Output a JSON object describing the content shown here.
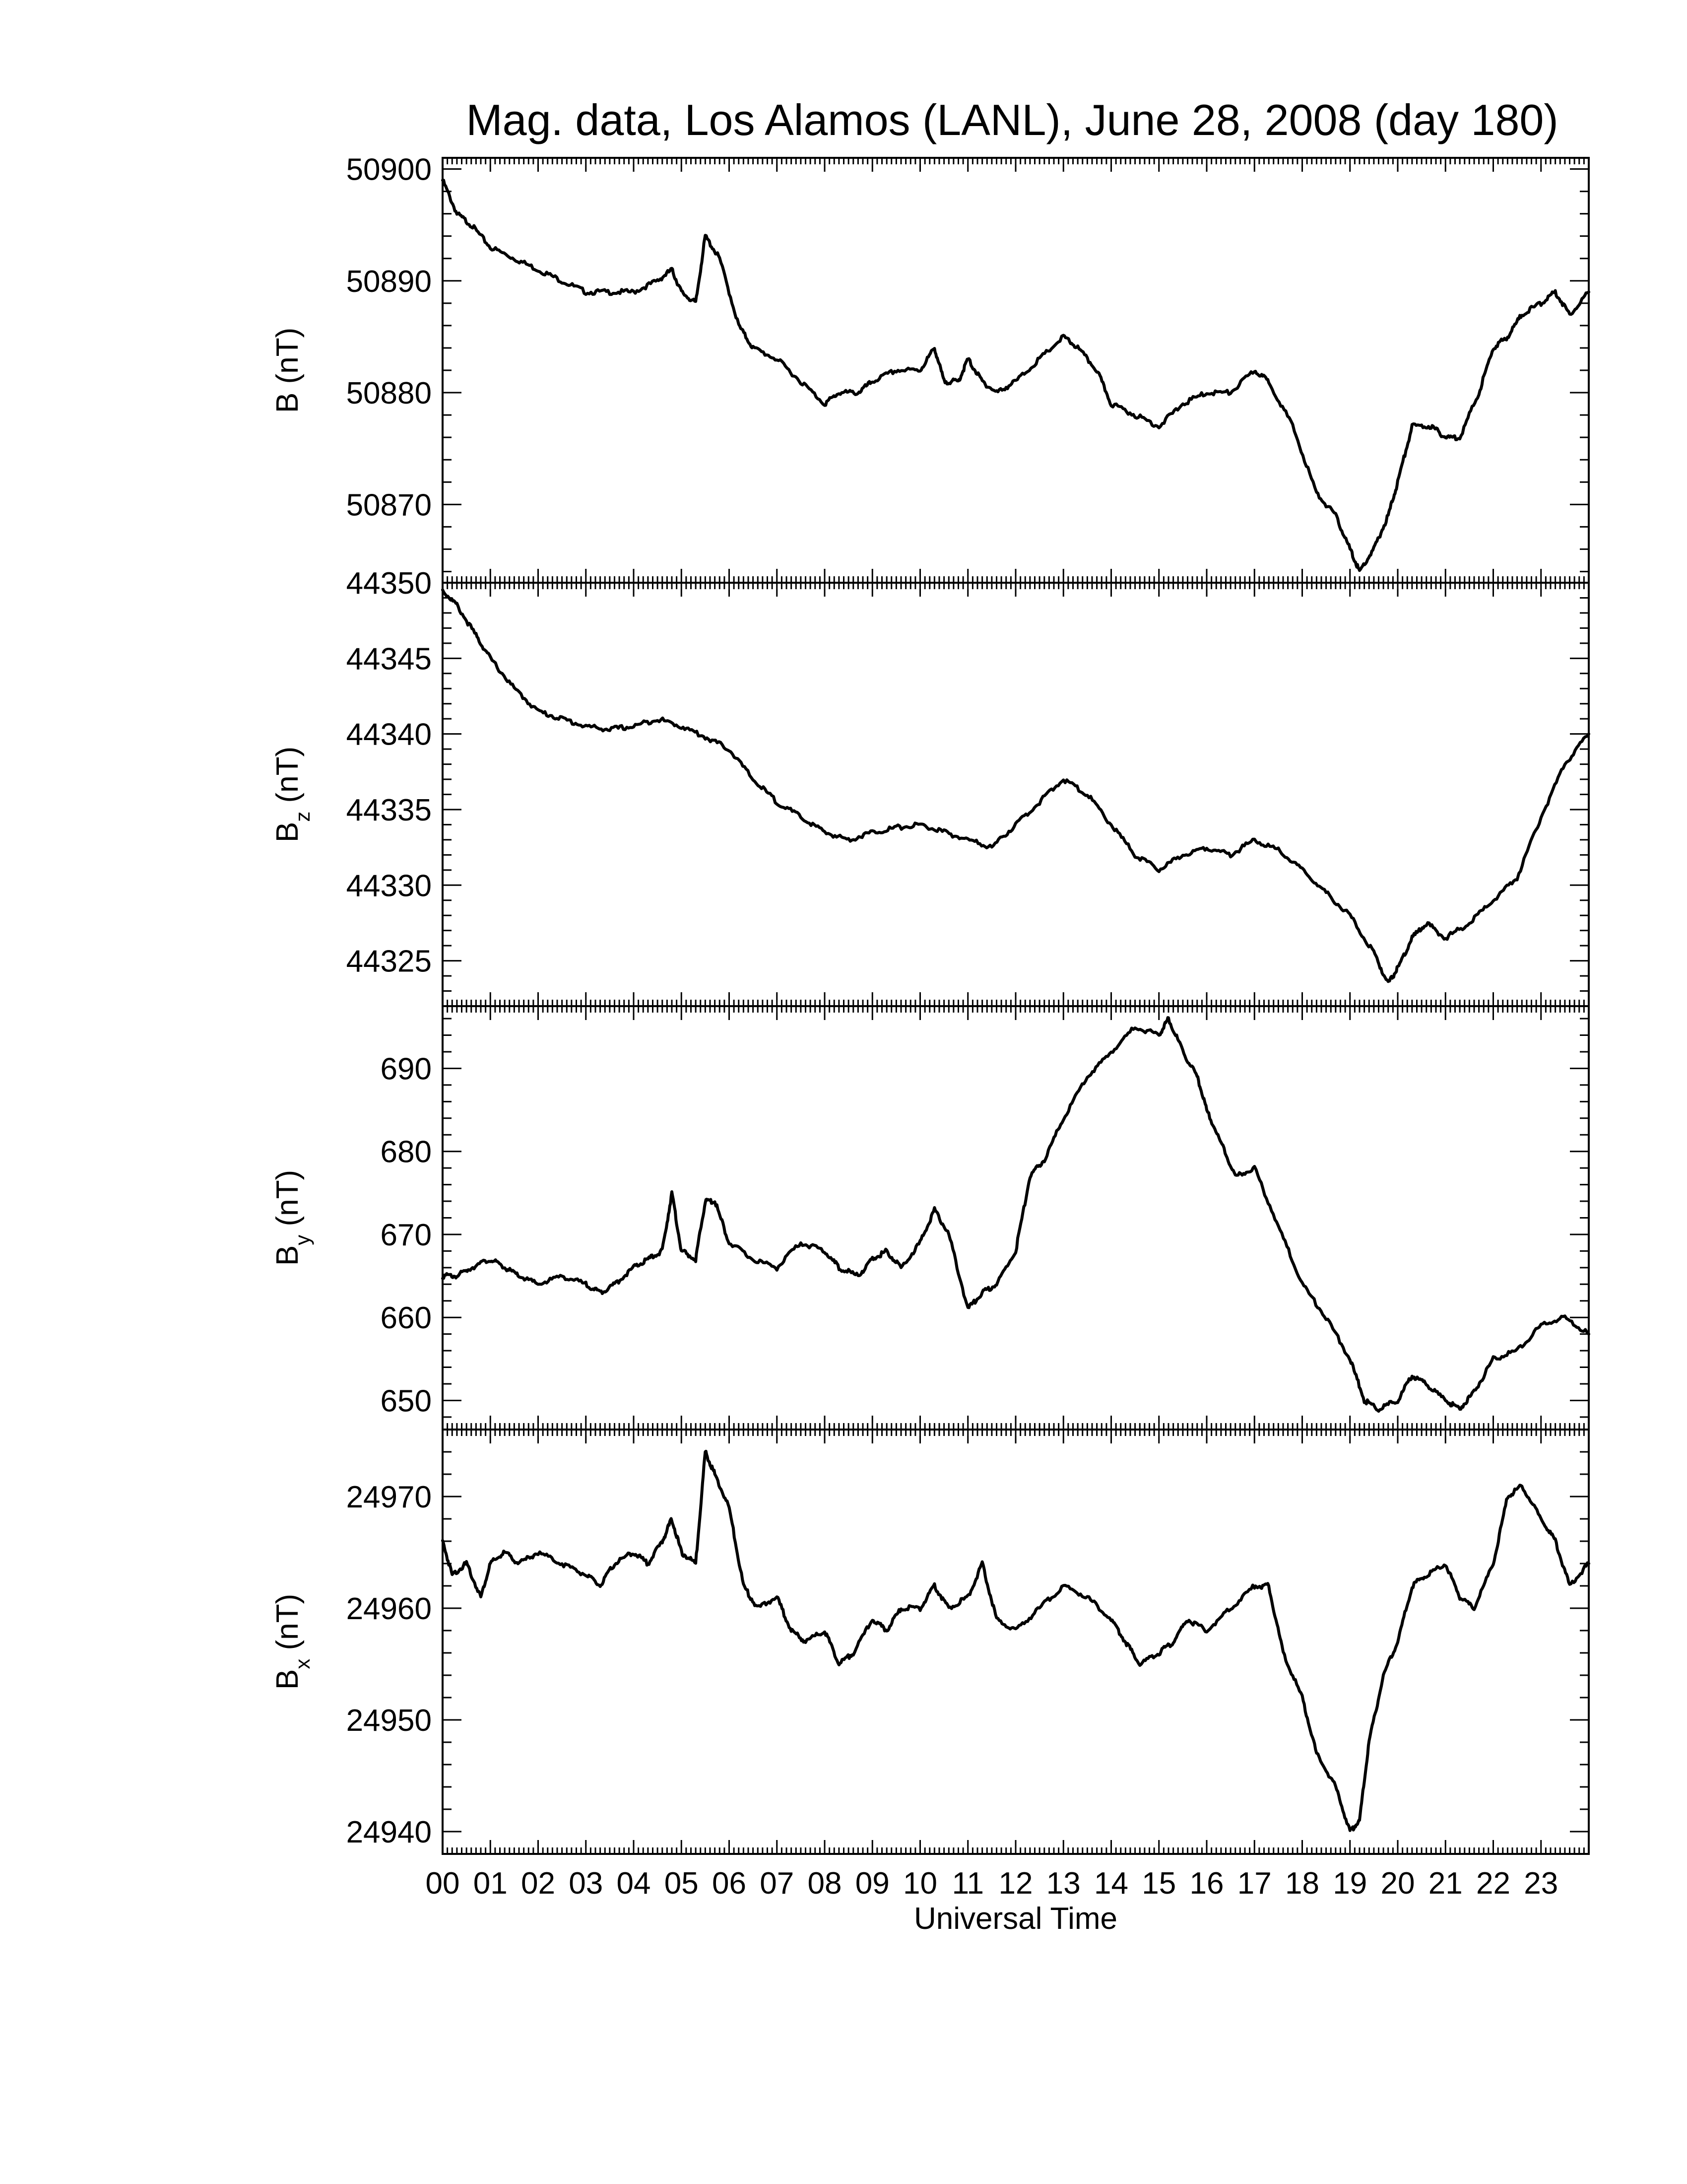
{
  "figure": {
    "title": "Mag. data, Los Alamos (LANL), June 28, 2008 (day 180)",
    "xlabel": "Universal Time",
    "line_color": "#000000"
  },
  "chart_data": [
    {
      "type": "line",
      "ylabel": "B (nT)",
      "ylabel_main": "B",
      "ylabel_sub": "",
      "ylabel_unit": " (nT)",
      "ylim": [
        50863,
        50901
      ],
      "yticks": [
        50870,
        50880,
        50890,
        50900
      ],
      "xlim": [
        0,
        24
      ],
      "x_tick_labels": [],
      "series": [
        {
          "x": [
            0.0,
            0.3,
            0.6,
            1.0,
            1.5,
            2.0,
            2.5,
            3.0,
            3.5,
            4.0,
            4.5,
            4.8,
            5.0,
            5.3,
            5.5,
            5.8,
            6.2,
            6.5,
            7.0,
            7.5,
            8.0,
            8.3,
            8.7,
            9.0,
            9.5,
            10.0,
            10.3,
            10.5,
            10.8,
            11.0,
            11.3,
            11.6,
            12.0,
            12.5,
            13.0,
            13.3,
            13.7,
            14.0,
            14.5,
            15.0,
            15.5,
            16.0,
            16.5,
            17.0,
            17.3,
            17.8,
            18.3,
            18.7,
            19.0,
            19.2,
            19.5,
            19.8,
            20.0,
            20.3,
            20.7,
            21.0,
            21.3,
            21.7,
            22.0,
            22.3,
            22.6,
            23.0,
            23.3,
            23.6,
            24.0
          ],
          "y": [
            50899,
            50896,
            50895,
            50893,
            50892,
            50891,
            50890,
            50889,
            50889,
            50889,
            50890,
            50891,
            50889,
            50888,
            50894,
            50892,
            50886,
            50884,
            50883,
            50881,
            50879,
            50880,
            50880,
            50881,
            50882,
            50882,
            50884,
            50881,
            50881,
            50883,
            50881,
            50880,
            50881,
            50883,
            50885,
            50884,
            50882,
            50879,
            50878,
            50877,
            50879,
            50880,
            50880,
            50882,
            50881,
            50877,
            50871,
            50869,
            50866,
            50864,
            50866,
            50869,
            50872,
            50877,
            50877,
            50876,
            50876,
            50880,
            50884,
            50885,
            50887,
            50888,
            50889,
            50887,
            50889
          ]
        }
      ]
    },
    {
      "type": "line",
      "ylabel": "Bz (nT)",
      "ylabel_main": "B",
      "ylabel_sub": "z",
      "ylabel_unit": " (nT)",
      "ylim": [
        44322,
        44350
      ],
      "yticks": [
        44325,
        44330,
        44335,
        44340,
        44345,
        44350
      ],
      "xlim": [
        0,
        24
      ],
      "x_tick_labels": [],
      "series": [
        {
          "x": [
            0.0,
            0.3,
            0.7,
            1.0,
            1.5,
            2.0,
            2.5,
            3.0,
            3.5,
            4.0,
            4.5,
            5.0,
            5.5,
            6.0,
            6.5,
            7.0,
            7.5,
            8.0,
            8.5,
            9.0,
            9.5,
            10.0,
            10.5,
            11.0,
            11.5,
            12.0,
            12.5,
            13.0,
            13.5,
            14.0,
            14.5,
            15.0,
            15.5,
            16.0,
            16.5,
            17.0,
            17.5,
            18.0,
            18.5,
            19.0,
            19.5,
            19.8,
            20.0,
            20.3,
            20.6,
            21.0,
            21.5,
            22.0,
            22.5,
            23.0,
            23.5,
            24.0
          ],
          "y": [
            44349.5,
            44348.5,
            44346.5,
            44345,
            44343,
            44341.5,
            44341,
            44340.5,
            44340.3,
            44340.5,
            44341,
            44340.5,
            44339.8,
            44339,
            44337,
            44335.5,
            44334.5,
            44333.5,
            44333,
            44333.5,
            44333.8,
            44334,
            44333.5,
            44333,
            44332.5,
            44334,
            44335.5,
            44337,
            44336,
            44334,
            44332,
            44331,
            44332,
            44332.5,
            44332,
            44333,
            44332.3,
            44331,
            44329.5,
            44328,
            44325.5,
            44323.5,
            44324.5,
            44326.5,
            44327.5,
            44326.5,
            44327.5,
            44329,
            44330.5,
            44334.5,
            44338,
            44340
          ]
        }
      ]
    },
    {
      "type": "line",
      "ylabel": "By (nT)",
      "ylabel_main": "B",
      "ylabel_sub": "y",
      "ylabel_unit": " (nT)",
      "ylim": [
        646.5,
        697.5
      ],
      "yticks": [
        650,
        660,
        670,
        680,
        690
      ],
      "xlim": [
        0,
        24
      ],
      "x_tick_labels": [],
      "series": [
        {
          "x": [
            0.0,
            0.3,
            0.6,
            1.0,
            1.3,
            1.6,
            2.0,
            2.5,
            3.0,
            3.3,
            3.6,
            4.0,
            4.3,
            4.6,
            4.8,
            5.0,
            5.3,
            5.5,
            5.7,
            6.0,
            6.5,
            7.0,
            7.5,
            8.0,
            8.3,
            8.7,
            9.0,
            9.3,
            9.6,
            10.0,
            10.3,
            10.6,
            11.0,
            11.3,
            11.6,
            12.0,
            12.3,
            12.6,
            13.0,
            13.5,
            14.0,
            14.5,
            15.0,
            15.2,
            15.5,
            15.8,
            16.0,
            16.3,
            16.6,
            17.0,
            17.5,
            18.0,
            18.5,
            19.0,
            19.3,
            19.6,
            20.0,
            20.3,
            20.6,
            21.0,
            21.3,
            21.6,
            22.0,
            22.5,
            23.0,
            23.5,
            24.0
          ],
          "y": [
            665,
            665,
            666,
            667,
            666,
            665,
            664,
            665,
            664,
            663,
            664,
            666,
            667,
            668,
            675,
            668,
            667,
            674,
            674,
            669,
            667,
            666,
            669,
            668,
            666,
            665,
            667,
            668,
            666,
            669,
            673,
            670,
            661,
            663,
            664,
            668,
            677,
            679,
            684,
            689,
            692,
            695,
            694,
            696,
            692,
            689,
            685,
            681,
            677,
            678,
            671,
            664,
            660,
            655,
            650,
            649,
            650,
            653,
            652,
            650,
            649,
            651,
            655,
            656,
            659,
            660,
            658
          ]
        }
      ]
    },
    {
      "type": "line",
      "ylabel": "Bx (nT)",
      "ylabel_main": "B",
      "ylabel_sub": "x",
      "ylabel_unit": " (nT)",
      "ylim": [
        24938,
        24976
      ],
      "yticks": [
        24940,
        24950,
        24960,
        24970
      ],
      "xlim": [
        0,
        24
      ],
      "x_tick_labels": [
        "00",
        "01",
        "02",
        "03",
        "04",
        "05",
        "06",
        "07",
        "08",
        "09",
        "10",
        "11",
        "12",
        "13",
        "14",
        "15",
        "16",
        "17",
        "18",
        "19",
        "20",
        "21",
        "22",
        "23"
      ],
      "series": [
        {
          "x": [
            0.0,
            0.2,
            0.5,
            0.8,
            1.0,
            1.3,
            1.6,
            2.0,
            2.5,
            3.0,
            3.3,
            3.6,
            4.0,
            4.3,
            4.6,
            4.8,
            5.0,
            5.3,
            5.5,
            5.7,
            6.0,
            6.3,
            6.6,
            7.0,
            7.3,
            7.6,
            8.0,
            8.3,
            8.6,
            9.0,
            9.3,
            9.6,
            10.0,
            10.3,
            10.6,
            11.0,
            11.3,
            11.6,
            12.0,
            12.5,
            13.0,
            13.5,
            14.0,
            14.3,
            14.6,
            15.0,
            15.3,
            15.6,
            16.0,
            16.5,
            17.0,
            17.3,
            17.6,
            18.0,
            18.3,
            18.7,
            19.0,
            19.2,
            19.4,
            19.7,
            20.0,
            20.3,
            20.6,
            21.0,
            21.3,
            21.6,
            22.0,
            22.3,
            22.6,
            23.0,
            23.3,
            23.6,
            24.0
          ],
          "y": [
            24966,
            24963,
            24964,
            24961,
            24964,
            24965,
            24964,
            24965,
            24964,
            24963,
            24962,
            24964,
            24965,
            24964,
            24966,
            24968,
            24965,
            24964,
            24974,
            24972,
            24969,
            24962,
            24960,
            24961,
            24958,
            24957,
            24958,
            24955,
            24956,
            24959,
            24958,
            24960,
            24960,
            24962,
            24960,
            24961,
            24964,
            24959,
            24958,
            24960,
            24962,
            24961,
            24959,
            24957,
            24955,
            24956,
            24957,
            24959,
            24958,
            24960,
            24962,
            24962,
            24956,
            24952,
            24947,
            24944,
            24940,
            24941,
            24948,
            24954,
            24957,
            24962,
            24963,
            24964,
            24961,
            24960,
            24964,
            24970,
            24971,
            24968,
            24966,
            24962,
            24964
          ]
        }
      ]
    }
  ]
}
